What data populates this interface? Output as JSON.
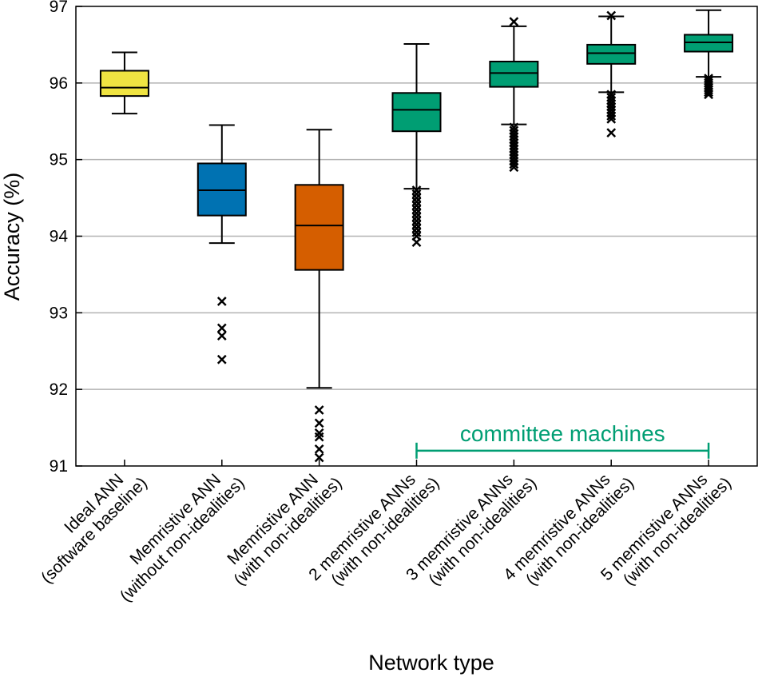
{
  "chart_data": {
    "type": "box",
    "title": "",
    "xlabel": "Network type",
    "ylabel": "Accuracy (%)",
    "ylim": [
      91,
      97
    ],
    "yticks": [
      91,
      92,
      93,
      94,
      95,
      96,
      97
    ],
    "grid": "horizontal",
    "categories": [
      {
        "line1": "Ideal ANN",
        "line2": "(software baseline)"
      },
      {
        "line1": "Memristive ANN",
        "line2": "(without non-idealities)"
      },
      {
        "line1": "Memristive ANN",
        "line2": "(with non-idealities)"
      },
      {
        "line1": "2 memristive ANNs",
        "line2": "(with non-idealities)"
      },
      {
        "line1": "3 memristive ANNs",
        "line2": "(with non-idealities)"
      },
      {
        "line1": "4 memristive ANNs",
        "line2": "(with non-idealities)"
      },
      {
        "line1": "5 memristive ANNs",
        "line2": "(with non-idealities)"
      }
    ],
    "boxes": [
      {
        "color": "#f0e442",
        "whisker_low": 95.6,
        "q1": 95.83,
        "median": 95.94,
        "q3": 96.16,
        "whisker_high": 96.4,
        "outliers": []
      },
      {
        "color": "#0072b2",
        "whisker_low": 93.91,
        "q1": 94.27,
        "median": 94.6,
        "q3": 94.95,
        "whisker_high": 95.45,
        "outliers": [
          93.15,
          92.8,
          92.7,
          92.39
        ]
      },
      {
        "color": "#d55e00",
        "whisker_low": 92.02,
        "q1": 93.56,
        "median": 94.14,
        "q3": 94.67,
        "whisker_high": 95.39,
        "outliers": [
          91.73,
          91.56,
          91.43,
          91.38,
          91.22,
          91.11
        ]
      },
      {
        "color": "#009e73",
        "whisker_low": 94.62,
        "q1": 95.37,
        "median": 95.65,
        "q3": 95.87,
        "whisker_high": 96.51,
        "outliers": [
          94.6,
          94.55,
          94.5,
          94.45,
          94.4,
          94.35,
          94.3,
          94.25,
          94.2,
          94.15,
          94.1,
          94.05,
          94.0,
          93.92
        ]
      },
      {
        "color": "#009e73",
        "whisker_low": 95.46,
        "q1": 95.95,
        "median": 96.13,
        "q3": 96.28,
        "whisker_high": 96.74,
        "outliers": [
          96.8,
          95.42,
          95.38,
          95.34,
          95.3,
          95.26,
          95.22,
          95.18,
          95.14,
          95.1,
          95.06,
          95.02,
          94.98,
          94.94,
          94.9
        ]
      },
      {
        "color": "#009e73",
        "whisker_low": 95.88,
        "q1": 96.25,
        "median": 96.39,
        "q3": 96.5,
        "whisker_high": 96.87,
        "outliers": [
          96.88,
          95.85,
          95.81,
          95.77,
          95.73,
          95.69,
          95.65,
          95.61,
          95.57,
          95.53,
          95.35
        ]
      },
      {
        "color": "#009e73",
        "whisker_low": 96.08,
        "q1": 96.41,
        "median": 96.53,
        "q3": 96.63,
        "whisker_high": 96.95,
        "outliers": [
          96.06,
          96.03,
          96.0,
          95.97,
          95.94,
          95.91,
          95.88,
          95.85
        ]
      }
    ],
    "annotation": {
      "text": "committee machines",
      "color": "#009e73",
      "span_from_category": 3,
      "span_to_category": 6,
      "y": 91.2
    }
  }
}
